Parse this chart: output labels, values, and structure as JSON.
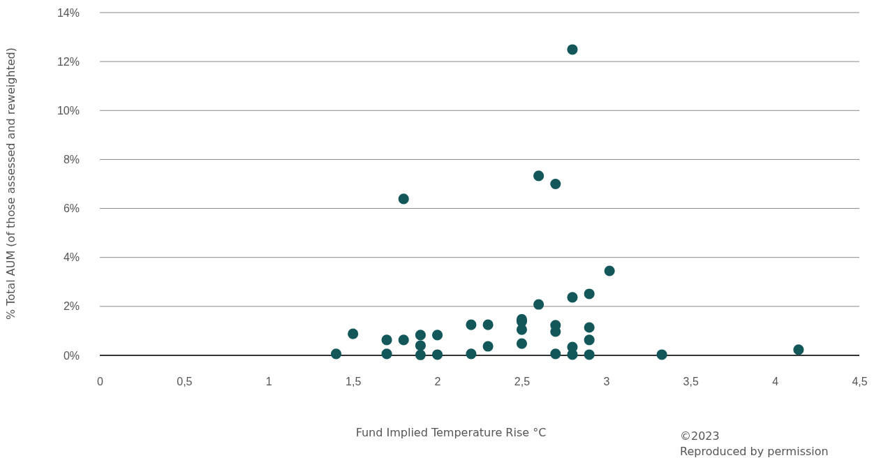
{
  "chart_data": {
    "type": "scatter",
    "xlabel": "Fund Implied Temperature Rise °C",
    "ylabel": "% Total AUM (of those assessed and reweighted)",
    "x": [
      1.4,
      1.5,
      1.7,
      1.7,
      1.8,
      1.8,
      1.9,
      1.9,
      1.9,
      2.0,
      2.0,
      2.2,
      2.2,
      2.3,
      2.3,
      2.5,
      2.5,
      2.5,
      2.5,
      2.6,
      2.6,
      2.7,
      2.7,
      2.7,
      2.7,
      2.8,
      2.8,
      2.8,
      2.8,
      2.9,
      2.9,
      2.9,
      2.9,
      3.02,
      3.33,
      4.14
    ],
    "series": [
      {
        "color": "#13575a",
        "values": [
          0.06,
          0.88,
          0.63,
          0.06,
          0.63,
          6.39,
          0.83,
          0.4,
          0.02,
          0.83,
          0.03,
          1.25,
          0.06,
          1.25,
          0.37,
          1.47,
          1.38,
          1.05,
          0.48,
          2.08,
          7.33,
          1.23,
          0.97,
          0.06,
          7.0,
          2.37,
          0.34,
          0.03,
          12.49,
          2.51,
          1.14,
          0.63,
          0.03,
          3.45,
          0.03,
          0.23
        ]
      }
    ],
    "xlim": [
      0,
      4.5
    ],
    "xticks": [
      0,
      {
        "value": 0.5,
        "label": "0,5"
      },
      1,
      {
        "value": 1.5,
        "label": "1,5"
      },
      2,
      {
        "value": 2.5,
        "label": "2,5"
      },
      3,
      {
        "value": 3.5,
        "label": "3,5"
      },
      4,
      {
        "value": 4.5,
        "label": "4,5"
      }
    ],
    "ylim": [
      0,
      14
    ],
    "yticks": [
      {
        "value": 0,
        "label": "0%"
      },
      {
        "value": 2,
        "label": "2%"
      },
      {
        "value": 4,
        "label": "4%"
      },
      {
        "value": 6,
        "label": "6%"
      },
      {
        "value": 8,
        "label": "8%"
      },
      {
        "value": 10,
        "label": "10%"
      },
      {
        "value": 12,
        "label": "12%"
      },
      {
        "value": 14,
        "label": "14%"
      }
    ],
    "grid": "y",
    "marker": "circle",
    "annotations": [
      "©2023",
      "Reproduced by permission"
    ]
  }
}
